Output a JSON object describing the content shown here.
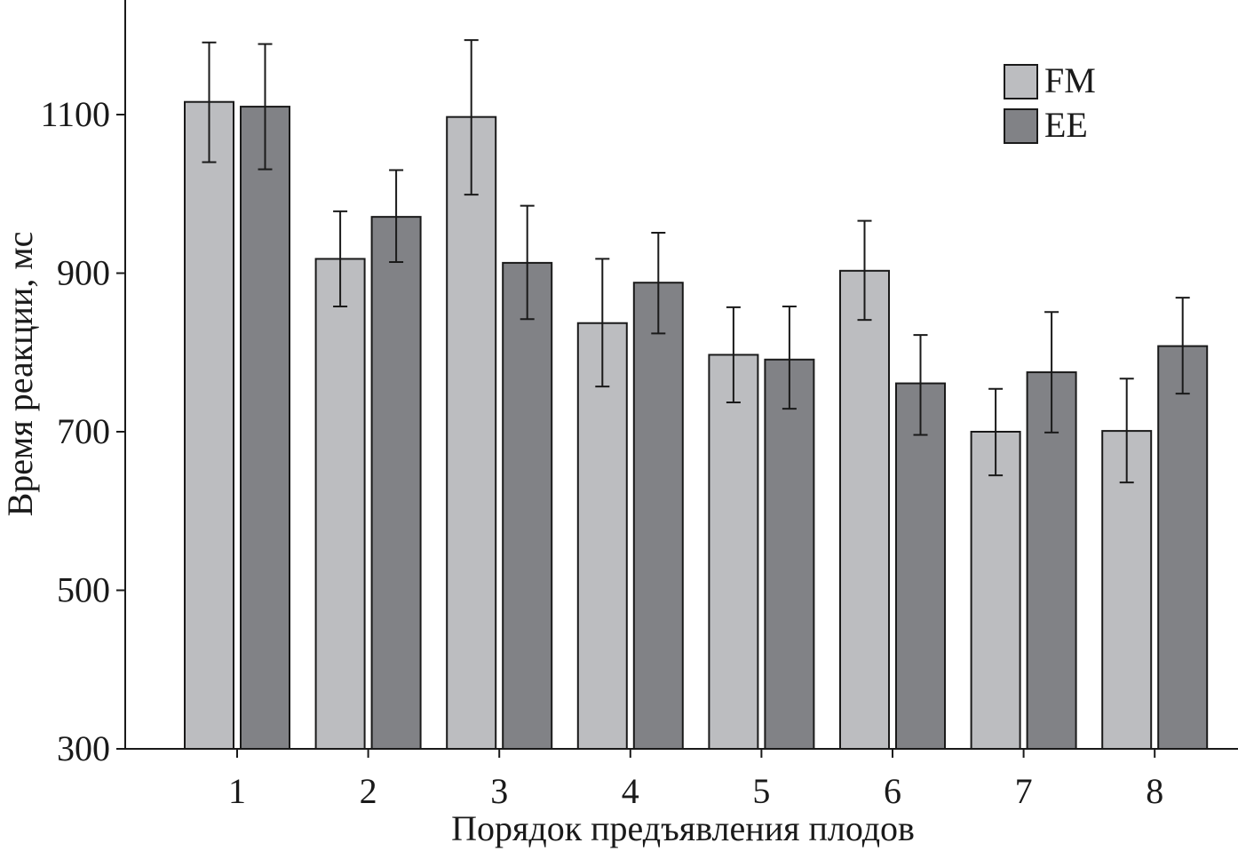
{
  "chart_data": {
    "type": "bar",
    "xlabel": "Порядок предъявления плодов",
    "ylabel": "Время реакции, мс",
    "categories": [
      "1",
      "2",
      "3",
      "4",
      "5",
      "6",
      "7",
      "8"
    ],
    "ylim": [
      300,
      1200
    ],
    "yticks": [
      300,
      500,
      700,
      900,
      1100
    ],
    "series": [
      {
        "name": "FM",
        "color": "#bcbdc0",
        "values": [
          1116,
          918,
          1097,
          837,
          797,
          903,
          700,
          701
        ],
        "error_low": [
          1040,
          858,
          999,
          757,
          737,
          841,
          645,
          636
        ],
        "error_high": [
          1191,
          978,
          1194,
          918,
          857,
          966,
          754,
          767
        ]
      },
      {
        "name": "EE",
        "color": "#818286",
        "values": [
          1110,
          971,
          913,
          888,
          791,
          761,
          775,
          808
        ],
        "error_low": [
          1031,
          914,
          842,
          824,
          729,
          696,
          699,
          748
        ],
        "error_high": [
          1189,
          1030,
          985,
          951,
          858,
          822,
          851,
          869
        ]
      }
    ],
    "legend_position": "top-right",
    "grid": false
  }
}
